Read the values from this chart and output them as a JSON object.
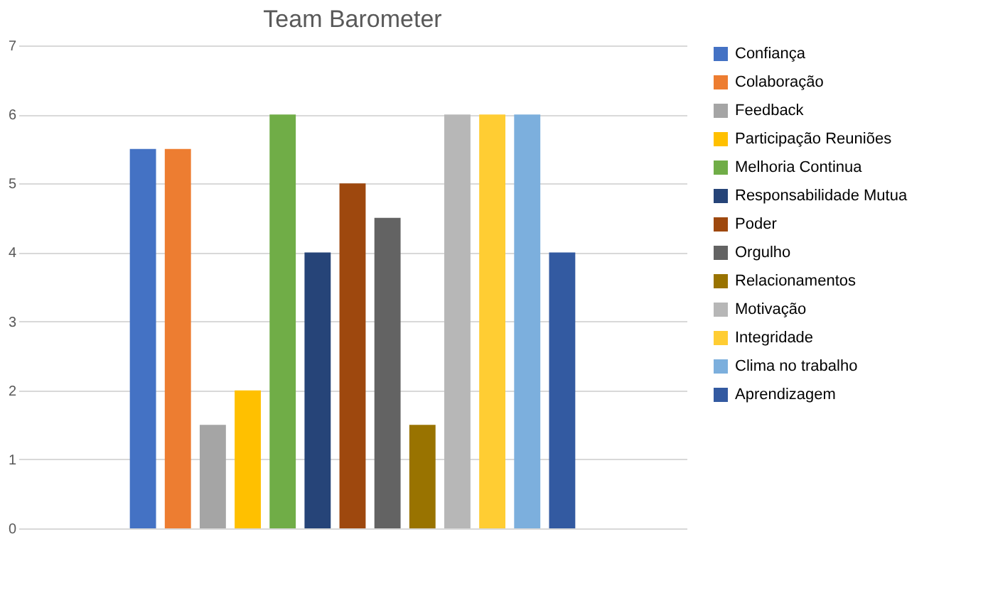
{
  "chart_data": {
    "type": "bar",
    "title": "Team Barometer",
    "categories": [
      null
    ],
    "series": [
      {
        "name": "Confiança",
        "color": "#4472c4",
        "values": [
          5.5
        ]
      },
      {
        "name": "Colaboração",
        "color": "#ed7d31",
        "values": [
          5.5
        ]
      },
      {
        "name": "Feedback",
        "color": "#a5a5a5",
        "values": [
          1.5
        ]
      },
      {
        "name": "Participação Reuniões",
        "color": "#ffc000",
        "values": [
          2
        ]
      },
      {
        "name": "Melhoria Continua",
        "color": "#70ad47",
        "values": [
          6
        ]
      },
      {
        "name": "Responsabilidade Mutua",
        "color": "#264478",
        "values": [
          4
        ]
      },
      {
        "name": "Poder",
        "color": "#9e480e",
        "values": [
          5
        ]
      },
      {
        "name": "Orgulho",
        "color": "#636363",
        "values": [
          4.5
        ]
      },
      {
        "name": "Relacionamentos",
        "color": "#997300",
        "values": [
          1.5
        ]
      },
      {
        "name": "Motivação",
        "color": "#b7b7b7",
        "values": [
          6
        ]
      },
      {
        "name": "Integridade",
        "color": "#ffcd33",
        "values": [
          6
        ]
      },
      {
        "name": "Clima no trabalho",
        "color": "#7cafdd",
        "values": [
          6
        ]
      },
      {
        "name": "Aprendizagem",
        "color": "#335aa1",
        "values": [
          4
        ]
      }
    ],
    "ylim": [
      0,
      7
    ],
    "yticks": [
      0,
      1,
      2,
      3,
      4,
      5,
      6,
      7
    ],
    "grid": "y",
    "legend": "right"
  }
}
